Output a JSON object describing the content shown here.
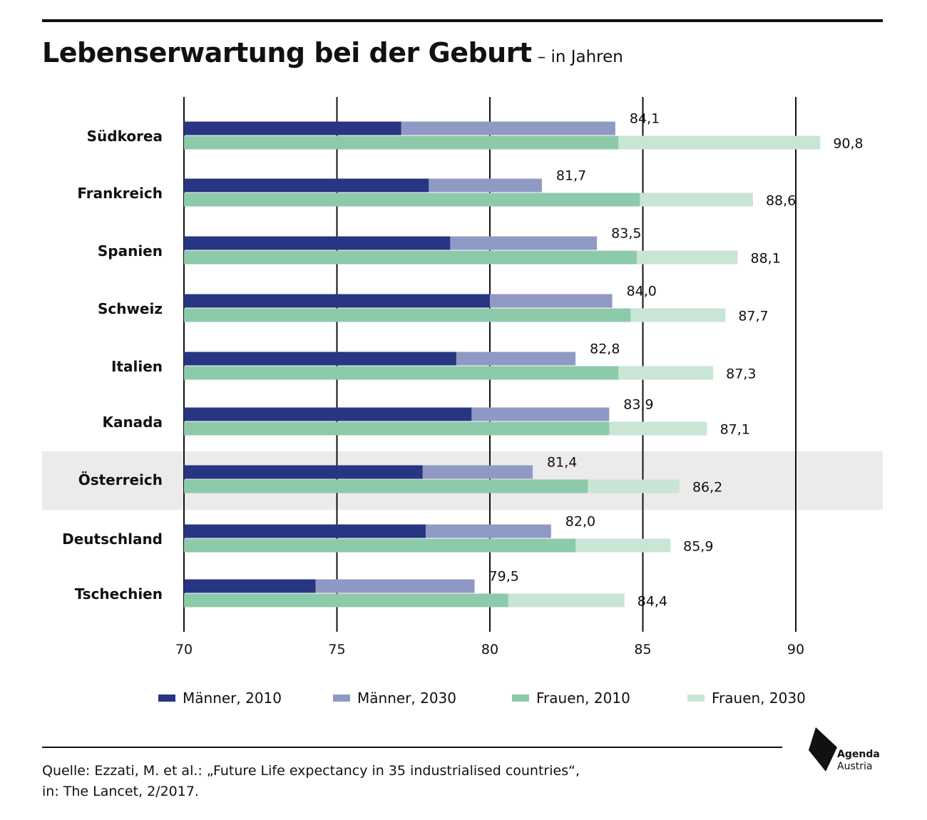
{
  "header": {
    "title": "Lebenserwartung bei der Geburt",
    "subtitle": "– in Jahren"
  },
  "chart_data": {
    "type": "bar",
    "orientation": "horizontal",
    "categories": [
      "Südkorea",
      "Frankreich",
      "Spanien",
      "Schweiz",
      "Italien",
      "Kanada",
      "Österreich",
      "Deutschland",
      "Tschechien"
    ],
    "highlighted_category": "Österreich",
    "series": [
      {
        "name": "Männer, 2010",
        "values": [
          77.1,
          78.0,
          78.7,
          80.0,
          78.9,
          79.4,
          77.8,
          77.9,
          74.3
        ]
      },
      {
        "name": "Männer, 2030",
        "values": [
          84.1,
          81.7,
          83.5,
          84.0,
          82.8,
          83.9,
          81.4,
          82.0,
          79.5
        ]
      },
      {
        "name": "Frauen, 2010",
        "values": [
          84.2,
          84.9,
          84.8,
          84.6,
          84.2,
          83.9,
          83.2,
          82.8,
          80.6
        ]
      },
      {
        "name": "Frauen, 2030",
        "values": [
          90.8,
          88.6,
          88.1,
          87.7,
          87.3,
          87.1,
          86.2,
          85.9,
          84.4
        ]
      }
    ],
    "value_labels_men_2030": [
      "84,1",
      "81,7",
      "83,5",
      "84,0",
      "82,8",
      "83,9",
      "81,4",
      "82,0",
      "79,5"
    ],
    "value_labels_women_2030": [
      "90,8",
      "88,6",
      "88,1",
      "87,7",
      "87,3",
      "87,1",
      "86,2",
      "85,9",
      "84,4"
    ],
    "xlim": [
      70,
      90
    ],
    "xticks": [
      70,
      75,
      80,
      85,
      90
    ],
    "xtick_labels": [
      "70",
      "75",
      "80",
      "85",
      "90"
    ],
    "grid": true,
    "legend_position": "bottom",
    "colors": {
      "men_2010": "#283583",
      "men_2030": "#9099c4",
      "women_2010": "#8ccaaa",
      "women_2030": "#c8e5d6",
      "highlight_band": "#ebebeb",
      "grid": "#111111"
    }
  },
  "footer": {
    "source_line1": "Quelle: Ezzati, M. et al.: „Future Life expectancy in 35 industrialised countries“,",
    "source_line2": "in: The Lancet, 2/2017."
  },
  "logo": {
    "word1": "Agenda",
    "word2": "Austria"
  }
}
